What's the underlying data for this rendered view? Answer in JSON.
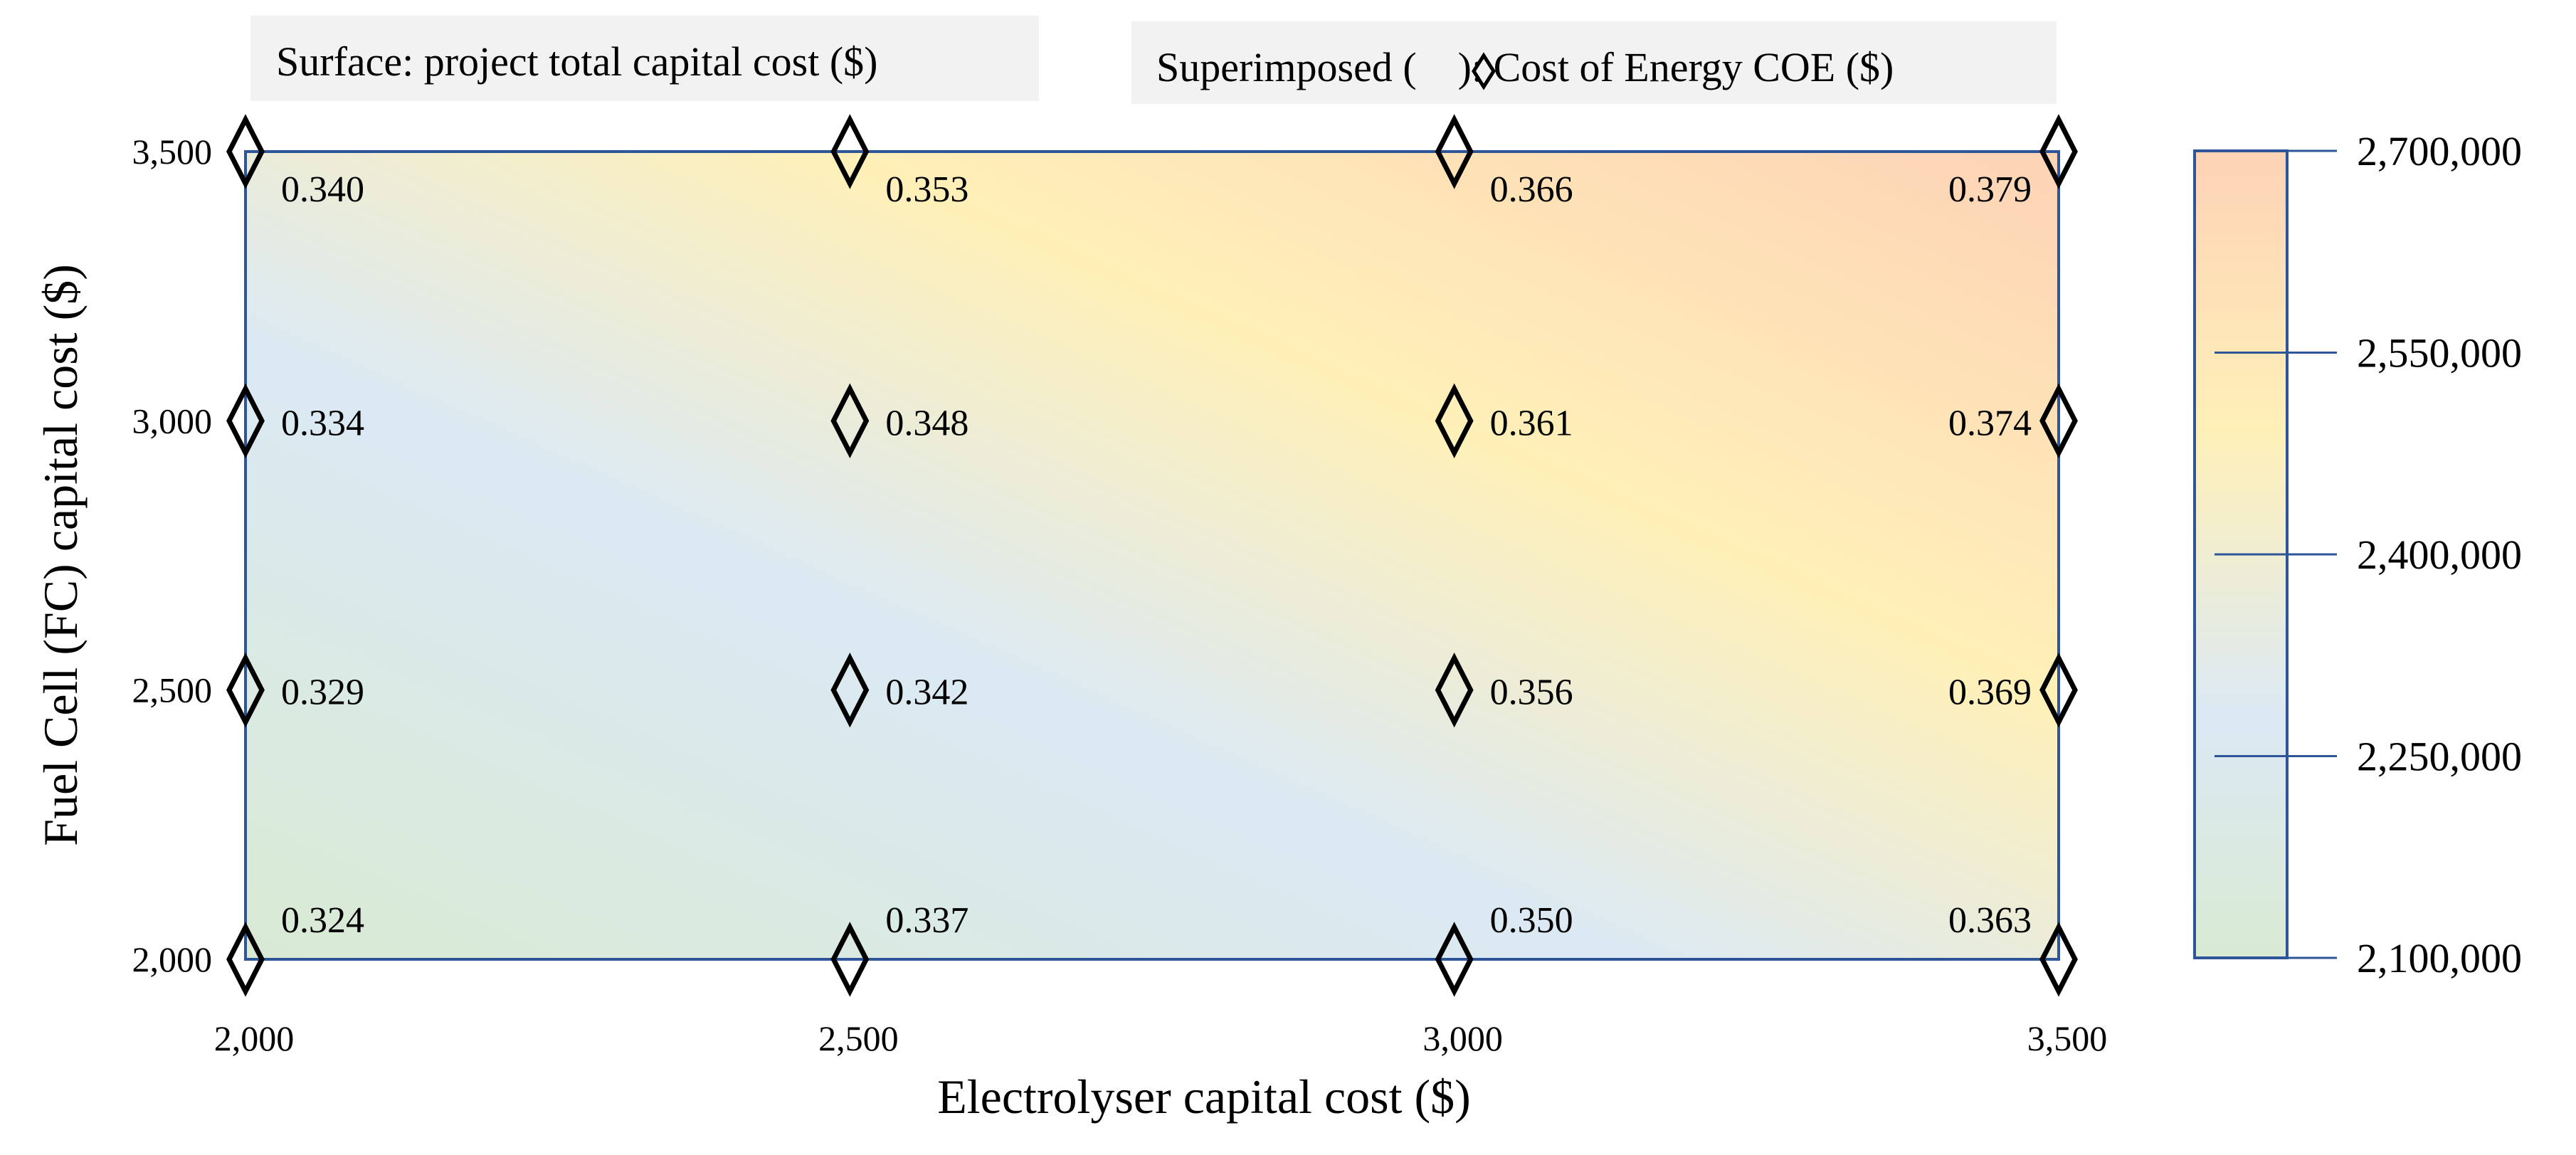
{
  "chart_data": {
    "type": "heatmap",
    "titles": {
      "surface": "Surface: project total capital cost ($)",
      "superimposed_prefix": "Superimposed (",
      "superimposed_suffix": "): Cost of Energy COE ($)"
    },
    "xlabel": "Electrolyser capital cost ($)",
    "ylabel": "Fuel Cell (FC) capital cost ($)",
    "x": [
      2000,
      2500,
      3000,
      3500
    ],
    "y": [
      2000,
      2500,
      3000,
      3500
    ],
    "x_tick_labels": [
      "2,000",
      "2,500",
      "3,000",
      "3,500"
    ],
    "y_tick_labels": [
      "2,000",
      "2,500",
      "3,000",
      "3,500"
    ],
    "xlim": [
      2000,
      3500
    ],
    "ylim": [
      2000,
      3500
    ],
    "coe_labels": [
      [
        "0.324",
        "0.337",
        "0.350",
        "0.363"
      ],
      [
        "0.329",
        "0.342",
        "0.356",
        "0.369"
      ],
      [
        "0.334",
        "0.348",
        "0.361",
        "0.374"
      ],
      [
        "0.340",
        "0.353",
        "0.366",
        "0.379"
      ]
    ],
    "colorbar": {
      "min": 2100000,
      "max": 2700000,
      "ticks": [
        2100000,
        2250000,
        2400000,
        2550000,
        2700000
      ],
      "tick_labels": [
        "2,100,000",
        "2,250,000",
        "2,400,000",
        "2,550,000",
        "2,700,000"
      ],
      "colors": {
        "low": "#d9ead3",
        "mid_low": "#dbe9f4",
        "mid": "#fff0b8",
        "high": "#fdd3b6"
      }
    },
    "marker": "diamond",
    "frame_color": "#2e5597"
  }
}
